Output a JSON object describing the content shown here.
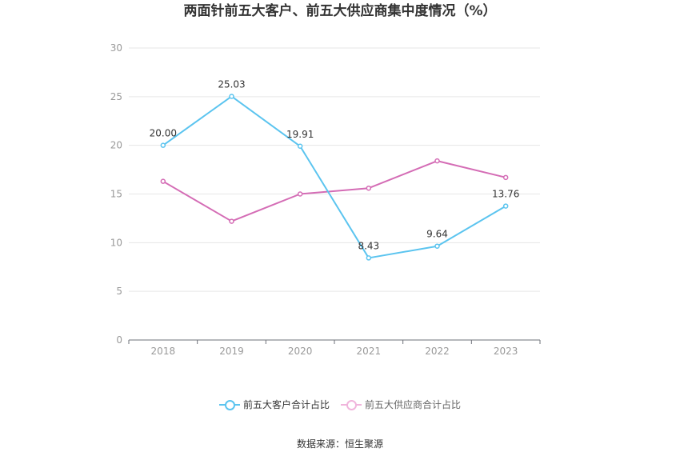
{
  "chart_data": {
    "type": "line",
    "title": "两面针前五大客户、前五大供应商集中度情况（%）",
    "categories": [
      "2018",
      "2019",
      "2020",
      "2021",
      "2022",
      "2023"
    ],
    "series": [
      {
        "name": "前五大客户合计占比",
        "color": "#5bc4ef",
        "values": [
          20.0,
          25.03,
          19.91,
          8.43,
          9.64,
          13.76
        ],
        "labels": [
          "20.00",
          "25.03",
          "19.91",
          "8.43",
          "9.64",
          "13.76"
        ]
      },
      {
        "name": "前五大供应商合计占比",
        "color": "#d46cb5",
        "values": [
          16.3,
          12.2,
          15.0,
          15.6,
          18.4,
          16.7
        ]
      }
    ],
    "y_ticks": [
      "0",
      "5",
      "10",
      "15",
      "20",
      "25",
      "30"
    ],
    "ylim": [
      0,
      30
    ],
    "xlabel": "",
    "ylabel": "",
    "grid": true,
    "legend": "bottom"
  },
  "source": "数据来源：恒生聚源"
}
